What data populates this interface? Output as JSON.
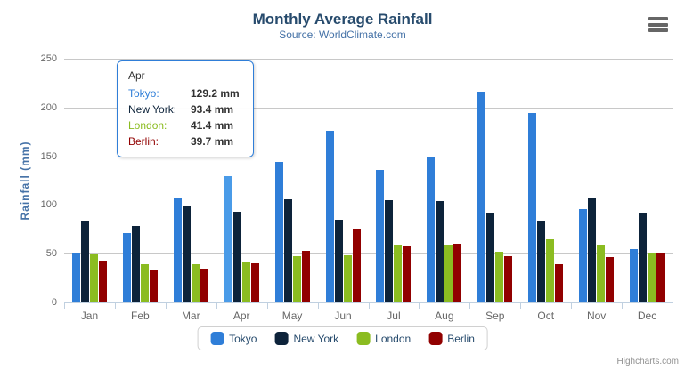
{
  "chart_data": {
    "type": "bar",
    "title": "Monthly Average Rainfall",
    "subtitle": "Source: WorldClimate.com",
    "categories": [
      "Jan",
      "Feb",
      "Mar",
      "Apr",
      "May",
      "Jun",
      "Jul",
      "Aug",
      "Sep",
      "Oct",
      "Nov",
      "Dec"
    ],
    "series": [
      {
        "name": "Tokyo",
        "color": "#2f7ed8",
        "values": [
          49.9,
          71.5,
          106.4,
          129.2,
          144.0,
          176.0,
          135.6,
          148.5,
          216.4,
          194.1,
          95.6,
          54.4
        ]
      },
      {
        "name": "New York",
        "color": "#0d233a",
        "values": [
          83.6,
          78.8,
          98.5,
          93.4,
          106.0,
          84.5,
          105.0,
          104.3,
          91.2,
          83.5,
          106.6,
          92.3
        ]
      },
      {
        "name": "London",
        "color": "#8bbc21",
        "values": [
          48.9,
          38.8,
          39.3,
          41.4,
          47.0,
          48.3,
          59.0,
          59.6,
          52.4,
          65.2,
          59.3,
          51.2
        ]
      },
      {
        "name": "Berlin",
        "color": "#910000",
        "values": [
          42.4,
          33.2,
          34.5,
          39.7,
          52.6,
          75.5,
          57.4,
          60.4,
          47.6,
          39.1,
          46.8,
          51.1
        ]
      }
    ],
    "xlabel": "",
    "ylabel": "Rainfall (mm)",
    "ylim": [
      0,
      250
    ],
    "ytick_interval": 50,
    "grid": true,
    "legend_position": "bottom",
    "hover_state": {
      "series": "Tokyo",
      "category": "Apr",
      "highlight_color": "#4a9be8"
    }
  },
  "tooltip": {
    "header": "Apr",
    "border_color": "#2f7ed8",
    "rows": [
      {
        "label": "Tokyo:",
        "value": "129.2 mm",
        "color": "#2f7ed8"
      },
      {
        "label": "New York:",
        "value": "93.4 mm",
        "color": "#0d233a"
      },
      {
        "label": "London:",
        "value": "41.4 mm",
        "color": "#8bbc21"
      },
      {
        "label": "Berlin:",
        "value": "39.7 mm",
        "color": "#910000"
      }
    ]
  },
  "icons": {
    "menu": "hamburger-menu-icon"
  },
  "credits": {
    "label": "Highcharts.com"
  },
  "colors": {
    "title": "#274b6d",
    "subtitle": "#4572a7",
    "axis_labels": "#666666",
    "gridline": "#c8c8c8",
    "axis_line": "#c0d0e0",
    "legend_text": "#274b6d"
  }
}
